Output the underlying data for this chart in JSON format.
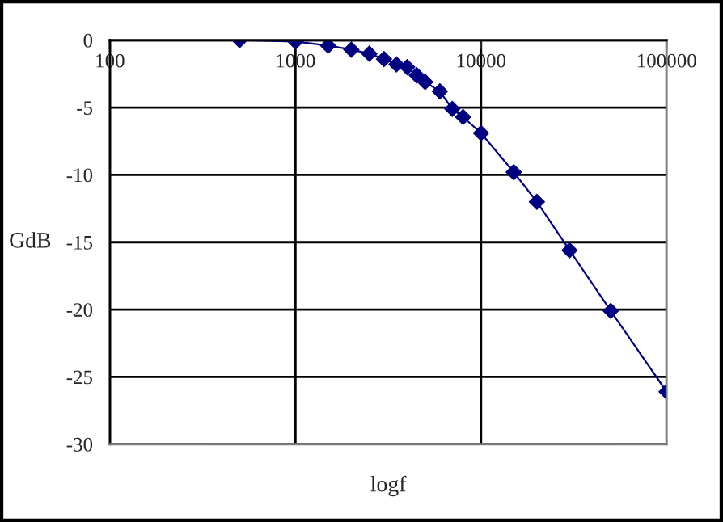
{
  "chart_data": {
    "type": "line",
    "xlabel": "logf",
    "ylabel": "GdB",
    "log": "x",
    "x": [
      500,
      1000,
      1500,
      2000,
      2500,
      3000,
      3500,
      4000,
      4500,
      5000,
      6000,
      7000,
      8000,
      10000,
      15000,
      20000,
      30000,
      50000,
      100000
    ],
    "series": [
      {
        "color": "#000080",
        "values": [
          0,
          -0.1,
          -0.4,
          -0.7,
          -1.0,
          -1.4,
          -1.8,
          -2.0,
          -2.6,
          -3.1,
          -3.8,
          -5.1,
          -5.7,
          -6.9,
          -9.8,
          -12.0,
          -15.6,
          -20.1,
          -26.1
        ]
      }
    ],
    "xlim": [
      100,
      100000
    ],
    "xticks": [
      100,
      1000,
      10000,
      100000
    ],
    "ylim": [
      -30,
      0
    ],
    "yticks": [
      -30,
      -25,
      -20,
      -15,
      -10,
      -5,
      0
    ],
    "grid": true,
    "marker": "diamond",
    "line_style": "solid",
    "legend": false
  }
}
